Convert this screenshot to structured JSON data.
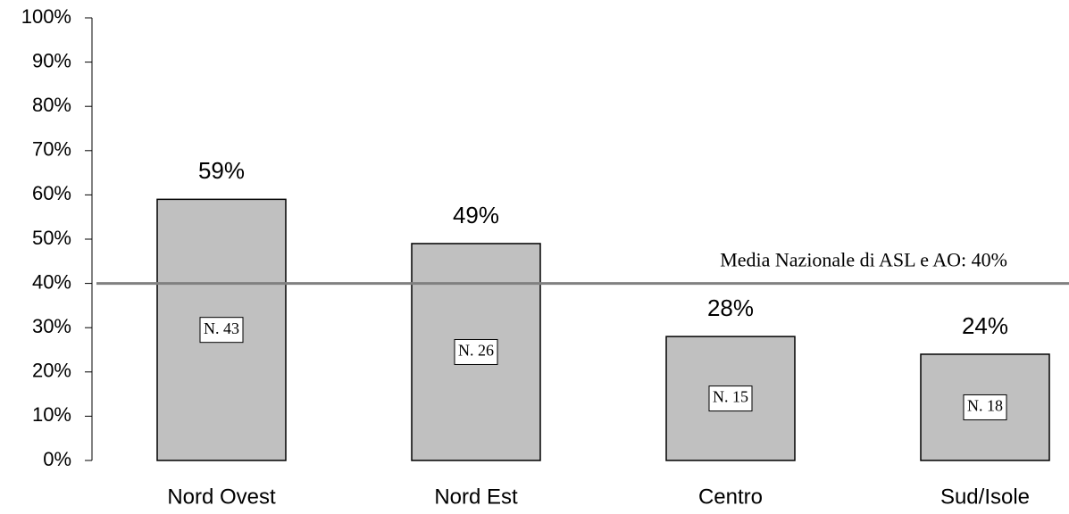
{
  "chart_data": {
    "type": "bar",
    "categories": [
      "Nord Ovest",
      "Nord Est",
      "Centro",
      "Sud/Isole"
    ],
    "values": [
      59,
      49,
      28,
      24
    ],
    "value_labels": [
      "59%",
      "49%",
      "28%",
      "24%"
    ],
    "count_labels": [
      "N. 43",
      "N. 26",
      "N. 15",
      "N. 18"
    ],
    "color": "#c0c0c0",
    "ylim": [
      0,
      100
    ],
    "yticks": [
      {
        "value": 0,
        "label": "0%"
      },
      {
        "value": 10,
        "label": "10%"
      },
      {
        "value": 20,
        "label": "20%"
      },
      {
        "value": 30,
        "label": "30%"
      },
      {
        "value": 40,
        "label": "40%"
      },
      {
        "value": 50,
        "label": "50%"
      },
      {
        "value": 60,
        "label": "60%"
      },
      {
        "value": 70,
        "label": "70%"
      },
      {
        "value": 80,
        "label": "80%"
      },
      {
        "value": 90,
        "label": "90%"
      },
      {
        "value": 100,
        "label": "100%"
      }
    ],
    "reference_line": {
      "value": 40,
      "label": "Media Nazionale di ASL e AO:  40%",
      "color": "#808080"
    },
    "grid": false
  }
}
